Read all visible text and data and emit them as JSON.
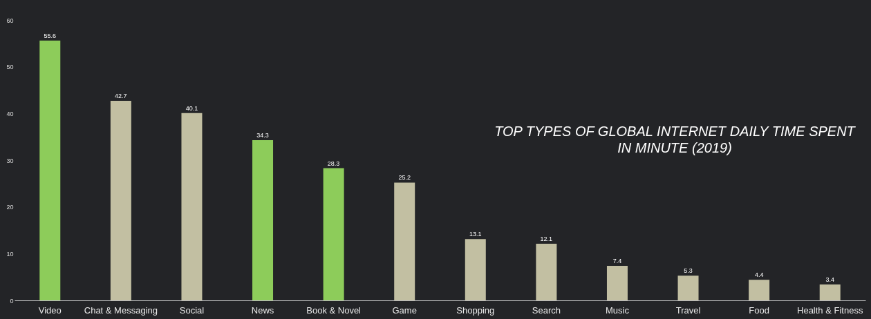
{
  "chart_data": {
    "type": "bar",
    "title": "TOP TYPES OF GLOBAL INTERNET DAILY TIME SPENT IN MINUTE (2019)",
    "categories": [
      "Video",
      "Chat & Messaging",
      "Social",
      "News",
      "Book & Novel",
      "Game",
      "Shopping",
      "Search",
      "Music",
      "Travel",
      "Food",
      "Health & Fitness"
    ],
    "values": [
      55.6,
      42.7,
      40.1,
      34.3,
      28.3,
      25.2,
      13.1,
      12.1,
      7.4,
      5.3,
      4.4,
      3.4
    ],
    "colors": [
      "#8dcc5a",
      "#c2bfa2",
      "#c2bfa2",
      "#8dcc5a",
      "#8dcc5a",
      "#c2bfa2",
      "#c2bfa2",
      "#c2bfa2",
      "#c2bfa2",
      "#c2bfa2",
      "#c2bfa2",
      "#c2bfa2"
    ],
    "ylim": [
      0,
      60
    ],
    "yticks": [
      0,
      10,
      20,
      30,
      40,
      50,
      60
    ],
    "grid": false,
    "data_labels": true
  }
}
